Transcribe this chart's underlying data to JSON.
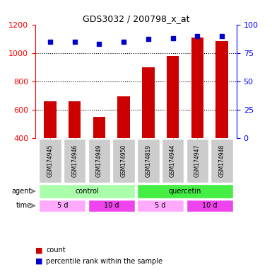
{
  "title": "GDS3032 / 200798_x_at",
  "samples": [
    "GSM174945",
    "GSM174946",
    "GSM174949",
    "GSM174950",
    "GSM174819",
    "GSM174944",
    "GSM174947",
    "GSM174948"
  ],
  "counts": [
    660,
    658,
    548,
    692,
    898,
    976,
    1107,
    1085
  ],
  "percentile_ranks": [
    85,
    85,
    83,
    85,
    87,
    88,
    90,
    90
  ],
  "ylim_left": [
    400,
    1200
  ],
  "ylim_right": [
    0,
    100
  ],
  "yticks_left": [
    400,
    600,
    800,
    1000,
    1200
  ],
  "yticks_right": [
    0,
    25,
    50,
    75,
    100
  ],
  "bar_color": "#cc0000",
  "dot_color": "#0000cc",
  "agent_groups": [
    {
      "label": "control",
      "start": 0,
      "end": 4,
      "color": "#aaffaa"
    },
    {
      "label": "quercetin",
      "start": 4,
      "end": 8,
      "color": "#44ee44"
    }
  ],
  "time_groups": [
    {
      "label": "5 d",
      "start": 0,
      "end": 2,
      "color": "#ffaaff"
    },
    {
      "label": "10 d",
      "start": 2,
      "end": 4,
      "color": "#ee44ee"
    },
    {
      "label": "5 d",
      "start": 4,
      "end": 6,
      "color": "#ffaaff"
    },
    {
      "label": "10 d",
      "start": 6,
      "end": 8,
      "color": "#ee44ee"
    }
  ],
  "legend_count_color": "#cc0000",
  "legend_dot_color": "#0000cc",
  "bg_color": "#ffffff",
  "grid_color": "#000000",
  "sample_bg_color": "#cccccc"
}
